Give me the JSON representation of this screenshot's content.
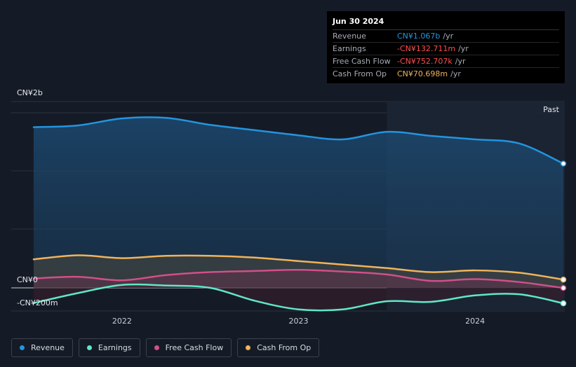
{
  "tooltip": {
    "date": "Jun 30 2024",
    "rows": [
      {
        "label": "Revenue",
        "value": "CN¥1.067b",
        "unit": "/yr",
        "color": "#2394df"
      },
      {
        "label": "Earnings",
        "value": "-CN¥132.711m",
        "unit": "/yr",
        "color": "#ff4d4d"
      },
      {
        "label": "Free Cash Flow",
        "value": "-CN¥752.707k",
        "unit": "/yr",
        "color": "#ff4d4d"
      },
      {
        "label": "Cash From Op",
        "value": "CN¥70.698m",
        "unit": "/yr",
        "color": "#f0b35c"
      }
    ]
  },
  "chart_data": {
    "type": "area",
    "y_axis_labels": [
      "CN¥2b",
      "CN¥0",
      "-CN¥200m"
    ],
    "past_label": "Past",
    "x_ticks": [
      {
        "label": "2022",
        "x": 2022.0
      },
      {
        "label": "2023",
        "x": 2023.0
      },
      {
        "label": "2024",
        "x": 2024.0
      }
    ],
    "ylim": [
      -200,
      1600
    ],
    "forecast_start": 2023.5,
    "series": [
      {
        "name": "Revenue",
        "color": "#2394df",
        "x": [
          2021.5,
          2021.75,
          2022.0,
          2022.25,
          2022.5,
          2022.75,
          2023.0,
          2023.25,
          2023.5,
          2023.75,
          2024.0,
          2024.25,
          2024.5
        ],
        "y": [
          1380,
          1395,
          1455,
          1460,
          1400,
          1355,
          1310,
          1275,
          1340,
          1305,
          1275,
          1240,
          1067
        ]
      },
      {
        "name": "Earnings",
        "color": "#5ee8c8",
        "x": [
          2021.5,
          2021.75,
          2022.0,
          2022.25,
          2022.5,
          2022.75,
          2023.0,
          2023.25,
          2023.5,
          2023.75,
          2024.0,
          2024.25,
          2024.5
        ],
        "y": [
          -130,
          -45,
          25,
          20,
          0,
          -110,
          -185,
          -185,
          -115,
          -120,
          -65,
          -55,
          -133
        ]
      },
      {
        "name": "Free Cash Flow",
        "color": "#d14f8a",
        "x": [
          2021.5,
          2021.75,
          2022.0,
          2022.25,
          2022.5,
          2022.75,
          2023.0,
          2023.25,
          2023.5,
          2023.75,
          2024.0,
          2024.25,
          2024.5
        ],
        "y": [
          80,
          95,
          65,
          110,
          135,
          145,
          155,
          140,
          115,
          60,
          75,
          50,
          -1
        ]
      },
      {
        "name": "Cash From Op",
        "color": "#f0b35c",
        "x": [
          2021.5,
          2021.75,
          2022.0,
          2022.25,
          2022.5,
          2022.75,
          2023.0,
          2023.25,
          2023.5,
          2023.75,
          2024.0,
          2024.25,
          2024.5
        ],
        "y": [
          245,
          280,
          255,
          275,
          275,
          260,
          230,
          200,
          170,
          135,
          150,
          130,
          71
        ]
      }
    ]
  },
  "legend": [
    {
      "label": "Revenue",
      "color": "#2394df"
    },
    {
      "label": "Earnings",
      "color": "#5ee8c8"
    },
    {
      "label": "Free Cash Flow",
      "color": "#d14f8a"
    },
    {
      "label": "Cash From Op",
      "color": "#f0b35c"
    }
  ]
}
